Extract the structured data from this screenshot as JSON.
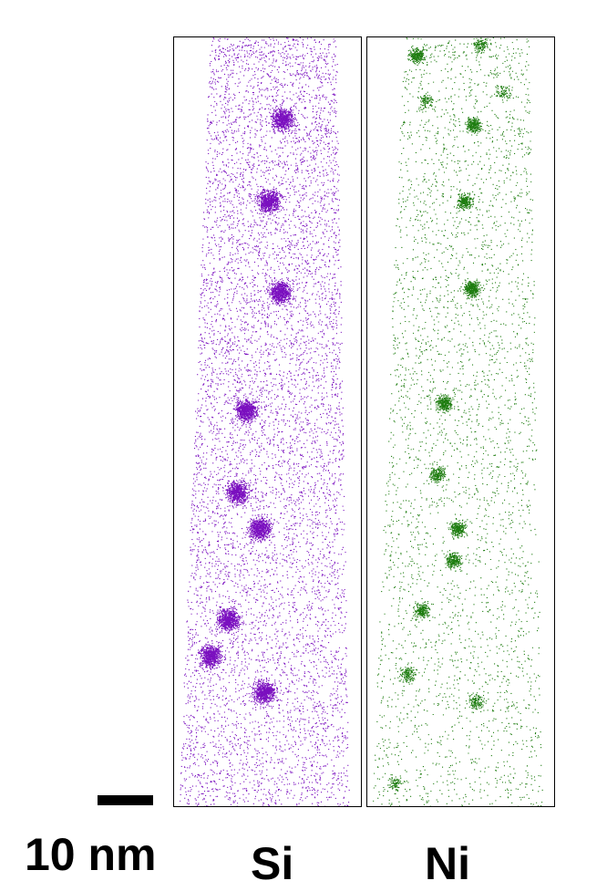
{
  "figure": {
    "scale_bar_label": "10 nm",
    "maps": [
      {
        "label": "Si",
        "color": "#7a0fbf"
      },
      {
        "label": "Ni",
        "color": "#1e7d10"
      }
    ]
  }
}
